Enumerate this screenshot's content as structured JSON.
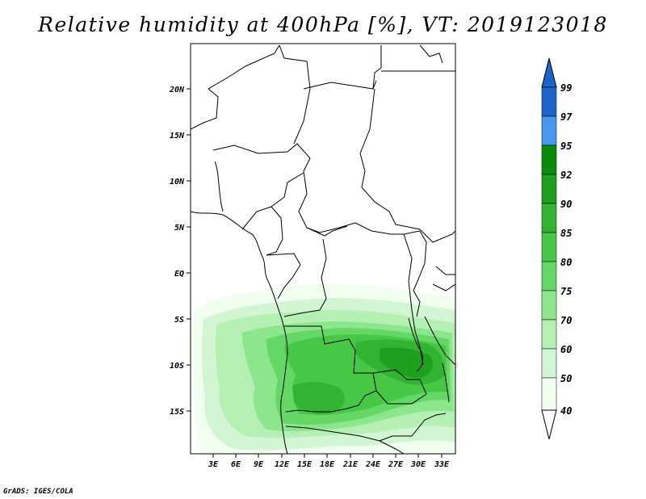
{
  "title": "Relative humidity at 400hPa [%], VT: 2019123018",
  "footer": "GrADS: IGES/COLA",
  "map": {
    "lat_labels": [
      "20N",
      "15N",
      "10N",
      "5N",
      "EQ",
      "5S",
      "10S",
      "15S"
    ],
    "lon_labels": [
      "3E",
      "6E",
      "9E",
      "12E",
      "15E",
      "18E",
      "21E",
      "24E",
      "27E",
      "30E",
      "33E"
    ]
  },
  "colorbar": {
    "levels": [
      "99",
      "97",
      "95",
      "92",
      "90",
      "85",
      "80",
      "75",
      "70",
      "60",
      "50",
      "40"
    ],
    "colors": [
      "#1e64c8",
      "#2878dc",
      "#4696f0",
      "#0a8c0a",
      "#1ea01e",
      "#32b432",
      "#46c846",
      "#64d764",
      "#8ce68c",
      "#b4f0b4",
      "#d2f5d2",
      "#f0fff0"
    ]
  }
}
